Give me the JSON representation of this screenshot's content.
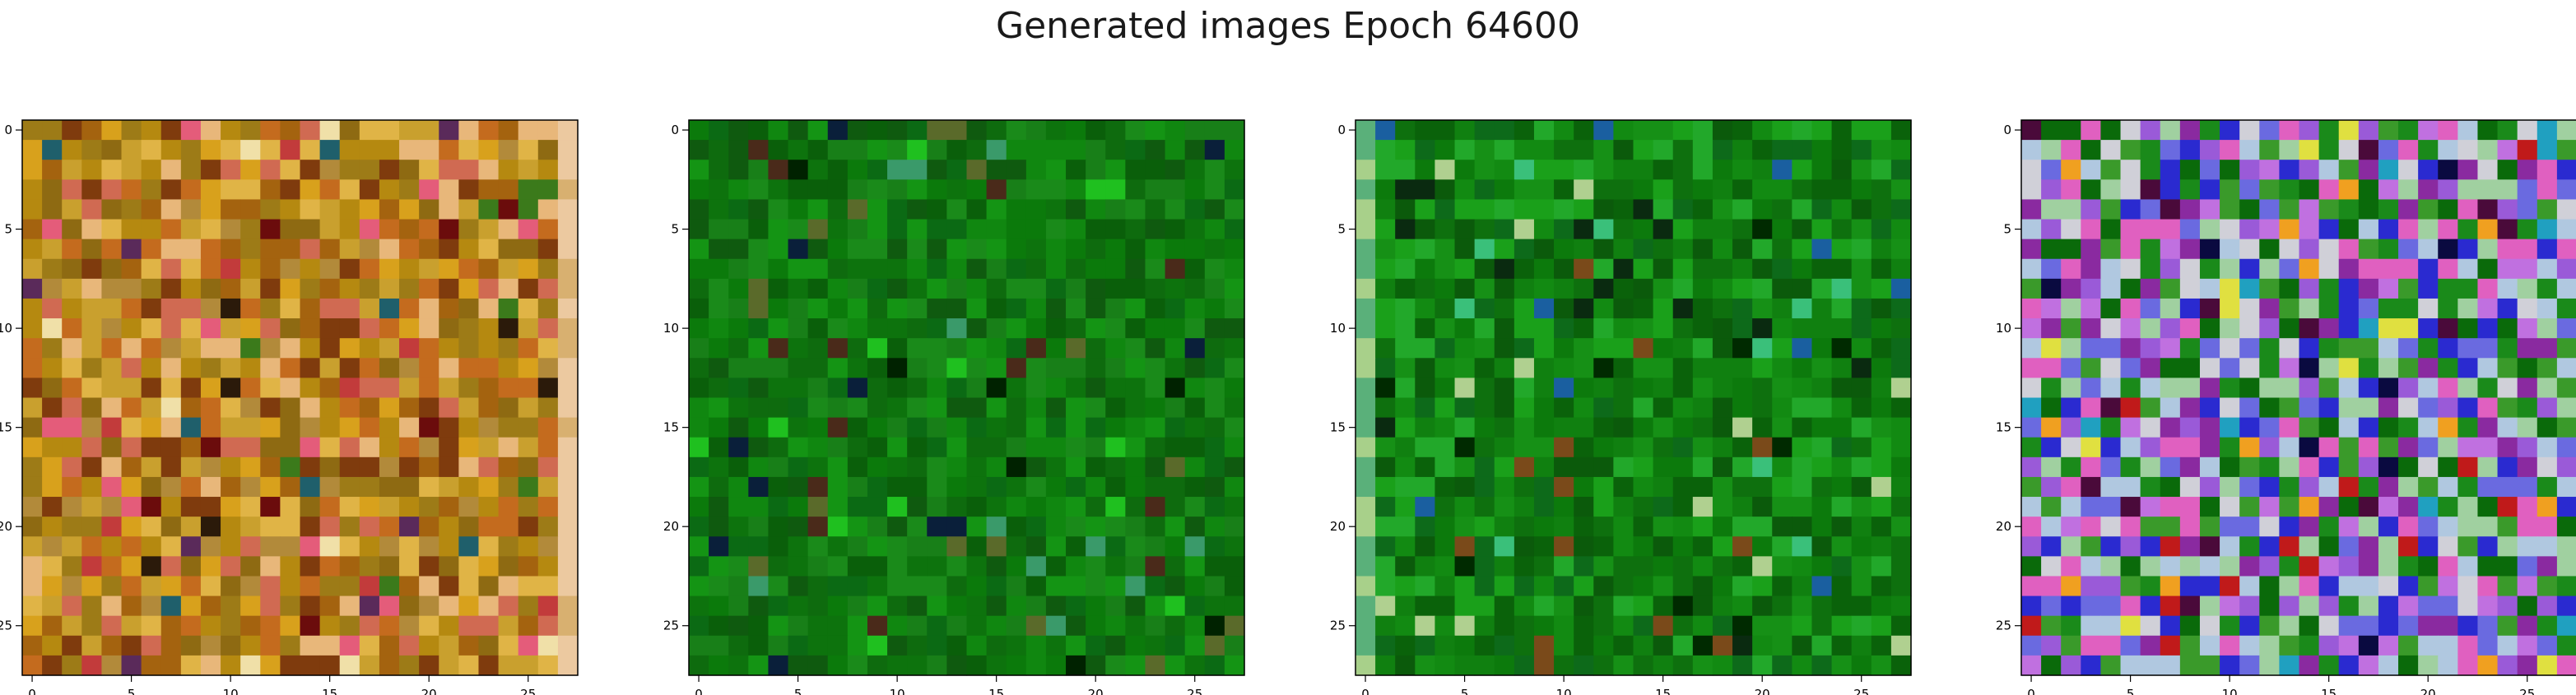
{
  "figure": {
    "title": "Generated images Epoch 64600"
  },
  "chart_data": [
    {
      "type": "heatmap",
      "title": "",
      "xlabel": "",
      "ylabel": "",
      "xlim": [
        -0.5,
        27.5
      ],
      "ylim": [
        27.5,
        -0.5
      ],
      "grid_size": [
        28,
        28
      ],
      "xticks": [
        0,
        5,
        10,
        15,
        20,
        25
      ],
      "yticks": [
        0,
        5,
        10,
        15,
        20,
        25
      ],
      "xtick_labels": [
        "0",
        "5",
        "10",
        "15",
        "20",
        "25"
      ],
      "ytick_labels": [
        "0",
        "5",
        "10",
        "15",
        "20",
        "25"
      ],
      "grid": false,
      "palette": [
        "#b58910",
        "#c9a02e",
        "#a4630f",
        "#d8a11c",
        "#8e6a12",
        "#c46b1e",
        "#b28a3a",
        "#e0b446",
        "#9d7b17",
        "#7f3b0d",
        "#d06a52",
        "#e8b77a"
      ],
      "accents": [
        "#6b0c0c",
        "#c23b3b",
        "#2b1a0a",
        "#3b7a1b",
        "#1f5f6b",
        "#f0e0a8",
        "#e45c7a",
        "#5a2a5a"
      ]
    },
    {
      "type": "heatmap",
      "title": "",
      "xlabel": "",
      "ylabel": "",
      "xlim": [
        -0.5,
        27.5
      ],
      "ylim": [
        27.5,
        -0.5
      ],
      "grid_size": [
        28,
        28
      ],
      "xticks": [
        0,
        5,
        10,
        15,
        20,
        25
      ],
      "yticks": [
        0,
        5,
        10,
        15,
        20,
        25
      ],
      "xtick_labels": [
        "0",
        "5",
        "10",
        "15",
        "20",
        "25"
      ],
      "ytick_labels": [
        "0",
        "5",
        "10",
        "15",
        "20",
        "25"
      ],
      "grid": false,
      "palette": [
        "#0b7a0b",
        "#0e6b0e",
        "#108710",
        "#0a5f0a",
        "#149414",
        "#0d730d",
        "#187f18",
        "#0b6a14",
        "#1a8a1a",
        "#0f5a0f"
      ],
      "accents": [
        "#002200",
        "#0a1f3a",
        "#3a9a6a",
        "#5a6a2a",
        "#1fc01f",
        "#4a2a1a"
      ]
    },
    {
      "type": "heatmap",
      "title": "",
      "xlabel": "",
      "ylabel": "",
      "xlim": [
        -0.5,
        27.5
      ],
      "ylim": [
        27.5,
        -0.5
      ],
      "grid_size": [
        28,
        28
      ],
      "xticks": [
        0,
        5,
        10,
        15,
        20,
        25
      ],
      "yticks": [
        0,
        5,
        10,
        15,
        20,
        25
      ],
      "xtick_labels": [
        "0",
        "5",
        "10",
        "15",
        "20",
        "25"
      ],
      "ytick_labels": [
        "0",
        "5",
        "10",
        "15",
        "20",
        "25"
      ],
      "grid": false,
      "palette": [
        "#0c7a0c",
        "#128a12",
        "#0a620a",
        "#1aa01a",
        "#0e700e",
        "#169016",
        "#0b5a0b",
        "#22a82a",
        "#108010",
        "#0d6a1a"
      ],
      "accents": [
        "#002a00",
        "#1a5fa0",
        "#7a4a1a",
        "#3ac07a",
        "#b0d090",
        "#0a2a10"
      ]
    },
    {
      "type": "heatmap",
      "title": "",
      "xlabel": "",
      "ylabel": "",
      "xlim": [
        -0.5,
        27.5
      ],
      "ylim": [
        27.5,
        -0.5
      ],
      "grid_size": [
        28,
        28
      ],
      "xticks": [
        0,
        5,
        10,
        15,
        20,
        25
      ],
      "yticks": [
        0,
        5,
        10,
        15,
        20,
        25
      ],
      "xtick_labels": [
        "0",
        "5",
        "10",
        "15",
        "20",
        "25"
      ],
      "ytick_labels": [
        "0",
        "5",
        "10",
        "15",
        "20",
        "25"
      ],
      "grid": false,
      "palette": [
        "#3a9a2a",
        "#1a8a1a",
        "#9a5ad8",
        "#c070e0",
        "#6a6ae0",
        "#e060c0",
        "#b0c8e0",
        "#8a2aa0",
        "#2a2ad0",
        "#a0d0a0",
        "#0a6a0a",
        "#d0d0d8"
      ],
      "accents": [
        "#c01a1a",
        "#f0a020",
        "#20a0c0",
        "#4a0a3a",
        "#0a0a40",
        "#e0e040"
      ]
    }
  ]
}
